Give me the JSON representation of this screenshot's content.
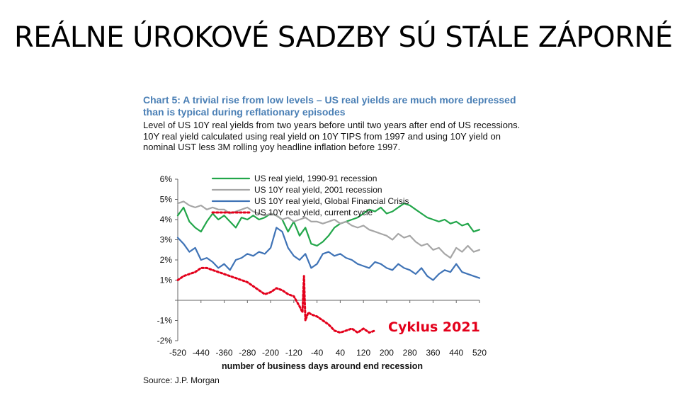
{
  "slide": {
    "title": "REÁLNE ÚROKOVÉ SADZBY SÚ STÁLE ZÁPORNÉ"
  },
  "annotation": "Cyklus 2021",
  "chart_data": {
    "type": "line",
    "title": "Chart 5: A trivial rise from low levels – US real yields are much more depressed than is typical during reflationary episodes",
    "subtitle": "Level of US 10Y real yields from two years before until two years after end of US recessions. 10Y real yield calculated using real yield on 10Y TIPS from 1997 and using 10Y yield on nominal UST less 3M rolling yoy headline inflation before 1997.",
    "xlabel": "number of business days around end recession",
    "source": "Source: J.P. Morgan",
    "xlim": [
      -520,
      520
    ],
    "ylim": [
      -2,
      6
    ],
    "x_ticks": [
      -520,
      -440,
      -360,
      -280,
      -200,
      -120,
      -40,
      40,
      120,
      200,
      280,
      360,
      440,
      520
    ],
    "x_tick_labels": [
      "-520",
      "-440",
      "-360",
      "-280",
      "-200",
      "-120",
      "-40",
      "40",
      "120",
      "200",
      "280",
      "360",
      "440",
      "520"
    ],
    "y_ticks": [
      -2,
      -1,
      0,
      1,
      2,
      3,
      4,
      5,
      6
    ],
    "y_tick_labels": [
      "-2%",
      "-1%",
      "",
      "1%",
      "2%",
      "3%",
      "4%",
      "5%",
      "6%"
    ],
    "legend_position": "top-left",
    "series": [
      {
        "name": "US real yield, 1990-91 recession",
        "color": "#22a64a",
        "style": "solid",
        "x": [
          -520,
          -500,
          -480,
          -460,
          -440,
          -420,
          -400,
          -380,
          -360,
          -340,
          -320,
          -300,
          -280,
          -260,
          -240,
          -220,
          -200,
          -180,
          -160,
          -140,
          -120,
          -100,
          -80,
          -60,
          -40,
          -20,
          0,
          20,
          40,
          60,
          80,
          100,
          120,
          140,
          160,
          180,
          200,
          220,
          240,
          260,
          280,
          300,
          320,
          340,
          360,
          380,
          400,
          420,
          440,
          460,
          480,
          500,
          520
        ],
        "y": [
          4.2,
          4.6,
          3.9,
          3.6,
          3.4,
          3.9,
          4.3,
          4.0,
          4.2,
          3.9,
          3.6,
          4.1,
          4.0,
          4.2,
          4.0,
          4.1,
          4.3,
          4.2,
          4.0,
          3.4,
          3.9,
          3.2,
          3.6,
          2.8,
          2.7,
          2.9,
          3.2,
          3.6,
          3.8,
          3.9,
          4.0,
          4.1,
          4.3,
          4.5,
          4.4,
          4.6,
          4.3,
          4.4,
          4.6,
          4.8,
          4.7,
          4.5,
          4.3,
          4.1,
          4.0,
          3.9,
          4.0,
          3.8,
          3.9,
          3.7,
          3.8,
          3.4,
          3.5
        ]
      },
      {
        "name": "US 10Y real yield, 2001 recession",
        "color": "#a6a6a6",
        "style": "solid",
        "x": [
          -520,
          -500,
          -480,
          -460,
          -440,
          -420,
          -400,
          -380,
          -360,
          -340,
          -320,
          -300,
          -280,
          -260,
          -240,
          -220,
          -200,
          -180,
          -160,
          -140,
          -120,
          -100,
          -80,
          -60,
          -40,
          -20,
          0,
          20,
          40,
          60,
          80,
          100,
          120,
          140,
          160,
          180,
          200,
          220,
          240,
          260,
          280,
          300,
          320,
          340,
          360,
          380,
          400,
          420,
          440,
          460,
          480,
          500,
          520
        ],
        "y": [
          4.8,
          4.9,
          4.7,
          4.6,
          4.7,
          4.5,
          4.6,
          4.5,
          4.5,
          4.3,
          4.4,
          4.5,
          4.6,
          4.4,
          4.3,
          4.2,
          4.3,
          4.2,
          4.0,
          4.1,
          3.9,
          4.0,
          4.1,
          3.9,
          3.9,
          3.8,
          3.9,
          4.0,
          3.8,
          3.9,
          3.7,
          3.6,
          3.7,
          3.5,
          3.4,
          3.3,
          3.2,
          3.0,
          3.3,
          3.1,
          3.2,
          2.9,
          2.7,
          2.8,
          2.5,
          2.6,
          2.3,
          2.1,
          2.6,
          2.4,
          2.7,
          2.4,
          2.5
        ]
      },
      {
        "name": "US 10Y real yield, Global Financial Crisis",
        "color": "#3f73b6",
        "style": "solid",
        "x": [
          -520,
          -500,
          -480,
          -460,
          -440,
          -420,
          -400,
          -380,
          -360,
          -340,
          -320,
          -300,
          -280,
          -260,
          -240,
          -220,
          -200,
          -180,
          -160,
          -140,
          -120,
          -100,
          -80,
          -60,
          -40,
          -20,
          0,
          20,
          40,
          60,
          80,
          100,
          120,
          140,
          160,
          180,
          200,
          220,
          240,
          260,
          280,
          300,
          320,
          340,
          360,
          380,
          400,
          420,
          440,
          460,
          480,
          500,
          520
        ],
        "y": [
          3.1,
          2.8,
          2.4,
          2.6,
          2.0,
          2.1,
          1.9,
          1.6,
          1.8,
          1.5,
          2.0,
          2.1,
          2.3,
          2.2,
          2.4,
          2.3,
          2.6,
          3.6,
          3.4,
          2.6,
          2.2,
          2.0,
          2.3,
          1.6,
          1.8,
          2.3,
          2.4,
          2.2,
          2.3,
          2.1,
          2.0,
          1.8,
          1.7,
          1.6,
          1.9,
          1.8,
          1.6,
          1.5,
          1.8,
          1.6,
          1.5,
          1.3,
          1.6,
          1.2,
          1.0,
          1.3,
          1.5,
          1.4,
          1.8,
          1.4,
          1.3,
          1.2,
          1.1
        ]
      },
      {
        "name": "US 10Y real yield, current cycle",
        "color": "#e3001b",
        "style": "dotted",
        "x": [
          -520,
          -500,
          -480,
          -460,
          -440,
          -420,
          -400,
          -380,
          -360,
          -340,
          -320,
          -300,
          -280,
          -260,
          -240,
          -220,
          -200,
          -180,
          -160,
          -140,
          -120,
          -100,
          -90,
          -85,
          -80,
          -70,
          -60,
          -40,
          -20,
          0,
          20,
          40,
          60,
          80,
          100,
          120,
          140,
          160
        ],
        "y": [
          1.0,
          1.2,
          1.3,
          1.4,
          1.6,
          1.6,
          1.5,
          1.4,
          1.3,
          1.2,
          1.1,
          1.0,
          0.9,
          0.7,
          0.5,
          0.3,
          0.4,
          0.6,
          0.5,
          0.3,
          0.2,
          -0.3,
          -0.6,
          1.2,
          -1.0,
          -0.6,
          -0.7,
          -0.8,
          -1.0,
          -1.2,
          -1.5,
          -1.6,
          -1.5,
          -1.4,
          -1.6,
          -1.4,
          -1.6,
          -1.5
        ]
      }
    ]
  }
}
